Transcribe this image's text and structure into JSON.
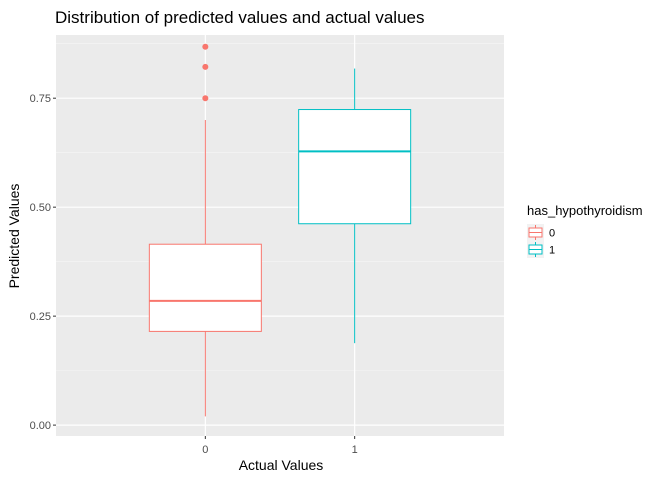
{
  "chart_data": {
    "type": "boxplot",
    "title": "Distribution of predicted values and actual values",
    "xlabel": "Actual Values",
    "ylabel": "Predicted Values",
    "categories": [
      "0",
      "1"
    ],
    "ylim": [
      -0.025,
      0.895
    ],
    "yticks": [
      0,
      0.25,
      0.5,
      0.75
    ],
    "ytick_labels": [
      "0.00",
      "0.25",
      "0.50",
      "0.75"
    ],
    "grid": true,
    "legend": {
      "title": "has_hypothyroidism",
      "placement": "right",
      "entries": [
        "0",
        "1"
      ]
    },
    "series": [
      {
        "name": "0",
        "category": "0",
        "color": "#F8766D",
        "min": 0.02,
        "q1": 0.215,
        "median": 0.285,
        "q3": 0.415,
        "max": 0.7,
        "outliers": [
          0.75,
          0.822,
          0.868
        ]
      },
      {
        "name": "1",
        "category": "1",
        "color": "#00BFC4",
        "min": 0.188,
        "q1": 0.462,
        "median": 0.628,
        "q3": 0.724,
        "max": 0.818,
        "outliers": []
      }
    ]
  }
}
